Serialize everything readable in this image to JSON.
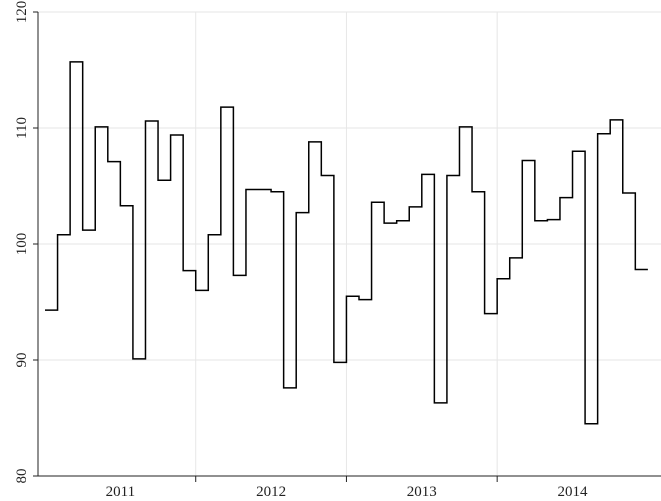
{
  "chart_data": {
    "type": "line",
    "style": "step",
    "grid": true,
    "x_unit": "month",
    "x_range": [
      "2011-01",
      "2014-12"
    ],
    "x_tick_labels": [
      "2011",
      "2012",
      "2013",
      "2014"
    ],
    "ylim": [
      80,
      120
    ],
    "y_ticks": [
      80,
      90,
      100,
      110,
      120
    ],
    "series": [
      {
        "color": "#000000",
        "x": [
          "2011-01",
          "2011-02",
          "2011-03",
          "2011-04",
          "2011-05",
          "2011-06",
          "2011-07",
          "2011-08",
          "2011-09",
          "2011-10",
          "2011-11",
          "2011-12",
          "2012-01",
          "2012-02",
          "2012-03",
          "2012-04",
          "2012-05",
          "2012-06",
          "2012-07",
          "2012-08",
          "2012-09",
          "2012-10",
          "2012-11",
          "2012-12",
          "2013-01",
          "2013-02",
          "2013-03",
          "2013-04",
          "2013-05",
          "2013-06",
          "2013-07",
          "2013-08",
          "2013-09",
          "2013-10",
          "2013-11",
          "2013-12",
          "2014-01",
          "2014-02",
          "2014-03",
          "2014-04",
          "2014-05",
          "2014-06",
          "2014-07",
          "2014-08",
          "2014-09",
          "2014-10",
          "2014-11",
          "2014-12"
        ],
        "values": [
          94.3,
          100.8,
          115.7,
          101.2,
          110.1,
          107.1,
          103.3,
          90.1,
          110.6,
          105.5,
          109.4,
          97.7,
          96.0,
          100.8,
          111.8,
          97.3,
          104.7,
          104.7,
          104.5,
          87.6,
          102.7,
          108.8,
          105.9,
          89.8,
          95.5,
          95.2,
          103.6,
          101.8,
          102.0,
          103.2,
          106.0,
          86.3,
          105.9,
          110.1,
          104.5,
          94.0,
          97.0,
          98.8,
          107.2,
          102.0,
          102.1,
          104.0,
          108.0,
          84.5,
          109.5,
          110.7,
          104.4,
          97.8
        ]
      }
    ]
  }
}
